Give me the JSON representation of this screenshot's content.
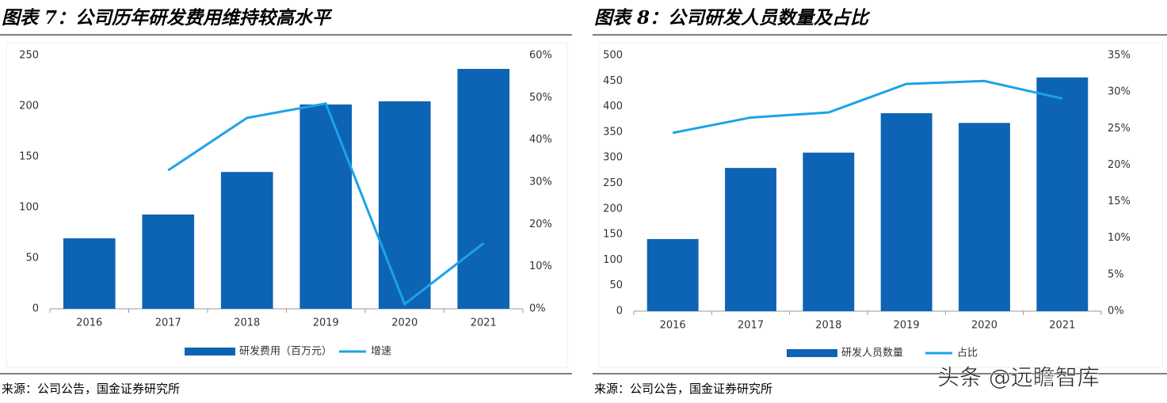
{
  "chart_data": [
    {
      "type": "bar",
      "title": "图表 7：公司历年研发费用维持较高水平",
      "categories": [
        "2016",
        "2017",
        "2018",
        "2019",
        "2020",
        "2021"
      ],
      "series": [
        {
          "name": "研发费用（百万元）",
          "color": "#0e64b4",
          "values": [
            69.5,
            93,
            135,
            201.6,
            204.7,
            236.7
          ]
        },
        {
          "name": "增速",
          "color": "#1ba3e8",
          "type": "line",
          "axis": "y2",
          "values": [
            null,
            32.8,
            45.2,
            48.6,
            1.1,
            15.5
          ]
        }
      ],
      "ylim": [
        0,
        250
      ],
      "yticks": [
        0,
        50,
        100,
        150,
        200,
        250
      ],
      "y2lim": [
        0,
        60
      ],
      "y2ticks": [
        {
          "value": 0,
          "label": "0%"
        },
        {
          "value": 10,
          "label": "10%"
        },
        {
          "value": 20,
          "label": "20%"
        },
        {
          "value": 30,
          "label": "30%"
        },
        {
          "value": 40,
          "label": "40%"
        },
        {
          "value": 50,
          "label": "50%"
        },
        {
          "value": 60,
          "label": "60%"
        }
      ],
      "source": "来源：公司公告，国金证券研究所"
    },
    {
      "type": "bar",
      "title": "图表 8：公司研发人员数量及占比",
      "categories": [
        "2016",
        "2017",
        "2018",
        "2019",
        "2020",
        "2021"
      ],
      "series": [
        {
          "name": "研发人员数量",
          "color": "#0e64b4",
          "values": [
            141,
            280,
            310,
            387,
            368,
            457
          ]
        },
        {
          "name": "占比",
          "color": "#1ba3e8",
          "type": "line",
          "axis": "y2",
          "values": [
            24.4,
            26.5,
            27.2,
            31.1,
            31.5,
            29.1
          ]
        }
      ],
      "ylim": [
        0,
        500
      ],
      "yticks": [
        0,
        50,
        100,
        150,
        200,
        250,
        300,
        350,
        400,
        450,
        500
      ],
      "y2lim": [
        0,
        35
      ],
      "y2ticks": [
        {
          "value": 0,
          "label": "0%"
        },
        {
          "value": 5,
          "label": "5%"
        },
        {
          "value": 10,
          "label": "10%"
        },
        {
          "value": 15,
          "label": "15%"
        },
        {
          "value": 20,
          "label": "20%"
        },
        {
          "value": 25,
          "label": "25%"
        },
        {
          "value": 30,
          "label": "30%"
        },
        {
          "value": 35,
          "label": "35%"
        }
      ],
      "source": "来源：公司公告，国金证券研究所"
    }
  ],
  "watermark": "头条 @远瞻智库"
}
